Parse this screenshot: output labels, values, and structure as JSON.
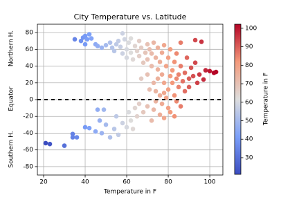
{
  "chart_data": {
    "type": "scatter",
    "title": "City Temperature vs. Latitude",
    "x_label": "Temperature in F",
    "annotations": [
      "Northern H.",
      "Equator",
      "Southern H."
    ],
    "colorbar_label": "Temperature in F",
    "colormap": "coolwarm",
    "clim": [
      21,
      102.2
    ],
    "cticks": [
      30,
      40,
      50,
      60,
      70,
      80,
      90,
      100
    ],
    "hline": 0,
    "grid": true,
    "xlim": [
      17,
      106.3
    ],
    "ylim": [
      -90,
      90
    ],
    "xticks": [
      20,
      40,
      60,
      80,
      100
    ],
    "yticks": [
      -80,
      -60,
      -40,
      -20,
      0,
      20,
      40,
      60,
      80
    ],
    "x": [
      35,
      38,
      39,
      40,
      41,
      40,
      42,
      43,
      45,
      46,
      48,
      50,
      52,
      53,
      54,
      55,
      56,
      57,
      58,
      58,
      59,
      60,
      60,
      61,
      62,
      62,
      63,
      64,
      65,
      66,
      66,
      67,
      68,
      69,
      70,
      70,
      71,
      72,
      72,
      73,
      74,
      75,
      75,
      76,
      77,
      77,
      78,
      78,
      79,
      80,
      80,
      81,
      81,
      82,
      82,
      83,
      83,
      84,
      84,
      85,
      85,
      86,
      86,
      87,
      88,
      88,
      89,
      90,
      90,
      91,
      92,
      93,
      93,
      94,
      95,
      96,
      97,
      98,
      100,
      102,
      103,
      67,
      70,
      73,
      74,
      76,
      78,
      79,
      71,
      75,
      21,
      23,
      30,
      34,
      34,
      36,
      40,
      42,
      45,
      46,
      47,
      48,
      49,
      50,
      52,
      54,
      55,
      56,
      58,
      60,
      61,
      62,
      63,
      64,
      65,
      66,
      68,
      70,
      72,
      73,
      74,
      76,
      77,
      78,
      80,
      81,
      83,
      84,
      86
    ],
    "y": [
      72,
      70,
      74,
      76,
      72,
      66,
      78,
      73,
      66,
      64,
      62,
      65,
      68,
      62,
      58,
      66,
      70,
      63,
      55,
      79,
      72,
      60,
      50,
      68,
      56,
      73,
      48,
      64,
      58,
      52,
      70,
      62,
      44,
      56,
      66,
      48,
      60,
      40,
      55,
      68,
      50,
      36,
      62,
      45,
      30,
      56,
      65,
      20,
      40,
      50,
      12,
      28,
      60,
      35,
      20,
      45,
      5,
      25,
      55,
      30,
      15,
      40,
      68,
      22,
      10,
      32,
      50,
      25,
      15,
      38,
      28,
      44,
      71,
      20,
      30,
      69,
      24,
      35,
      34,
      32,
      33,
      25,
      30,
      20,
      10,
      5,
      8,
      2,
      12,
      25,
      -52,
      -53,
      -55,
      -45,
      -41,
      -45,
      -33,
      -34,
      -38,
      -12,
      -25,
      -40,
      -12,
      -30,
      -45,
      -35,
      -20,
      -42,
      -28,
      -33,
      -15,
      -25,
      -35,
      -10,
      -20,
      -5,
      -15,
      -8,
      -25,
      -12,
      -2,
      -18,
      -5,
      -22,
      -10,
      -15,
      -20,
      -2,
      -8
    ]
  }
}
